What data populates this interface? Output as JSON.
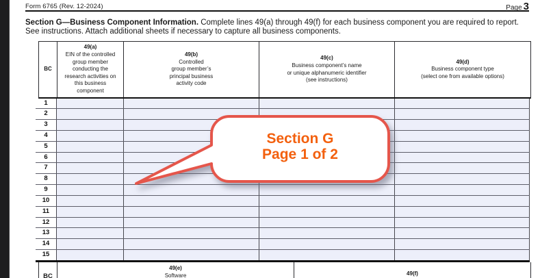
{
  "page_header": {
    "form_id": "Form 6765 (Rev. 12-2024)",
    "page_word": "Page",
    "page_number": "3"
  },
  "section_intro": {
    "bold": "Section G—Business Component Information.",
    "text": " Complete lines 49(a) through 49(f) for each business component you are required to report. See instructions. Attach additional sheets if necessary to capture all business components."
  },
  "table": {
    "bc_label": "BC",
    "columns": [
      {
        "id": "49a",
        "label": "49(a)",
        "lines": [
          "EIN of the controlled",
          "group member",
          "conducting the",
          "research activities on",
          "this business",
          "component"
        ]
      },
      {
        "id": "49b",
        "label": "49(b)",
        "lines": [
          "Controlled",
          "group member’s",
          "principal business",
          "activity code"
        ]
      },
      {
        "id": "49c",
        "label": "49(c)",
        "lines": [
          "Business component’s name",
          "or unique alphanumeric identifier",
          "(see instructions)"
        ]
      },
      {
        "id": "49d",
        "label": "49(d)",
        "lines": [
          "Business component type",
          "(select one from available options)"
        ]
      }
    ],
    "row_numbers": [
      "1",
      "2",
      "3",
      "4",
      "5",
      "6",
      "7",
      "8",
      "9",
      "10",
      "11",
      "12",
      "13",
      "14",
      "15"
    ],
    "bottom_header": {
      "bc_label": "BC",
      "col_49e_label": "49(e)",
      "col_49e_sub": "Software",
      "col_49f_label": "49(f)"
    }
  },
  "callout": {
    "line1": "Section G",
    "line2": "Page 1 of 2"
  },
  "colors": {
    "callout_border": "#e5564b",
    "callout_text": "#f3600e",
    "row_shading": "#edeffa",
    "rule_black": "#111111"
  }
}
